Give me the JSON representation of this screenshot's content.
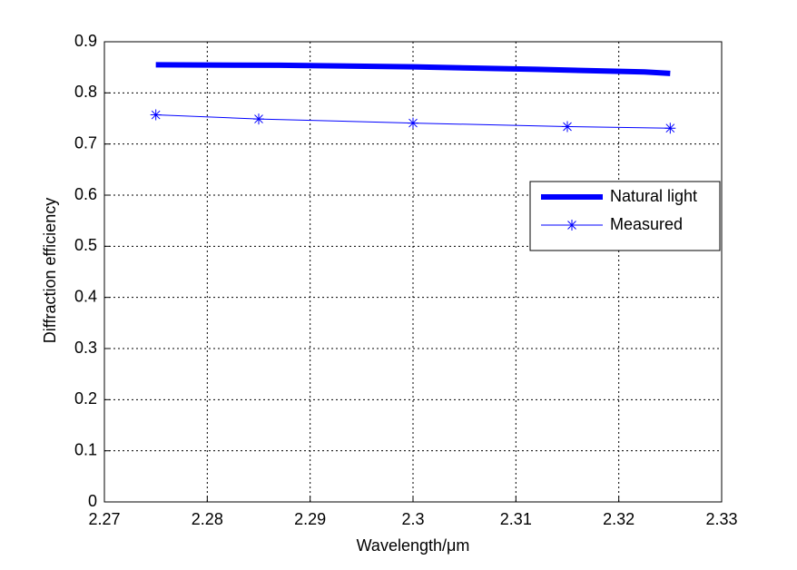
{
  "chart_data": {
    "type": "line",
    "xlabel": "Wavelength/μm",
    "ylabel": "Diffraction efficiency",
    "xlim": [
      2.27,
      2.33
    ],
    "xticks": [
      2.27,
      2.28,
      2.29,
      2.3,
      2.31,
      2.32,
      2.33
    ],
    "ylim": [
      0,
      0.9
    ],
    "yticks": [
      0,
      0.1,
      0.2,
      0.3,
      0.4,
      0.5,
      0.6,
      0.7,
      0.8,
      0.9
    ],
    "grid": true,
    "legend": "right",
    "series": [
      {
        "name": "Natural light",
        "color": "#0000ff",
        "marker": false,
        "x": [
          2.275,
          2.287,
          2.3,
          2.312,
          2.3225,
          2.325
        ],
        "values": [
          0.855,
          0.854,
          0.851,
          0.846,
          0.841,
          0.838
        ]
      },
      {
        "name": "Measured",
        "color": "#0000ff",
        "marker": true,
        "x": [
          2.275,
          2.285,
          2.3,
          2.315,
          2.325
        ],
        "values": [
          0.757,
          0.749,
          0.741,
          0.734,
          0.731
        ]
      }
    ]
  }
}
